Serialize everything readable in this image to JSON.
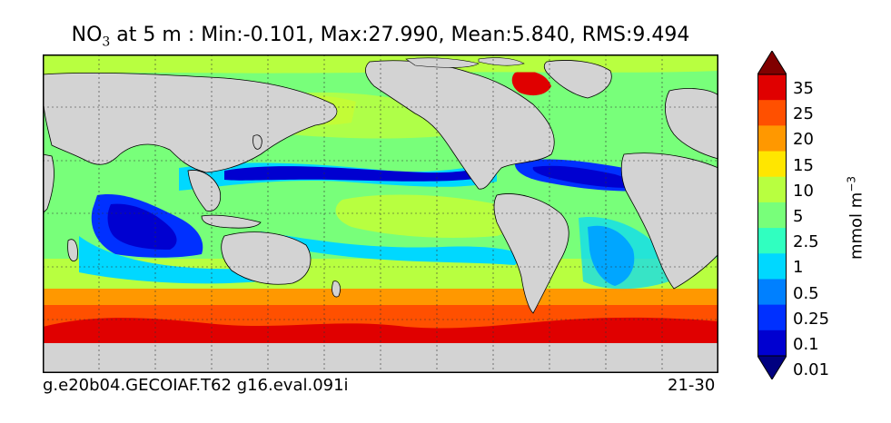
{
  "title": {
    "prefix": "NO",
    "subscript": "3",
    "rest": " at 5 m : Min:-0.101, Max:27.990, Mean:5.840, RMS:9.494"
  },
  "footer": {
    "left": "g.e20b04.GECOIAF.T62 g16.eval.091i",
    "right": "21-30"
  },
  "colorbar": {
    "labels": [
      "35",
      "25",
      "20",
      "15",
      "10",
      "5",
      "2.5",
      "1",
      "0.5",
      "0.25",
      "0.1",
      "0.01"
    ],
    "colors": [
      "#800000",
      "#e00000",
      "#ff5000",
      "#ff9800",
      "#ffe600",
      "#b8ff40",
      "#78ff7a",
      "#30ffc0",
      "#00d8ff",
      "#0080ff",
      "#0030ff",
      "#0000d0",
      "#000080"
    ],
    "units_base": "mmol m",
    "units_exp": "−3"
  },
  "map": {
    "land_color": "#d3d3d3",
    "ocean_colors": {
      "polar_south": "#e00000",
      "southern": "#ff5000",
      "sub_southern": "#ff9800",
      "mid_south": "#b8ff40",
      "temperate": "#78ff7a",
      "north": "#78ff7a",
      "subtropic": "#30ffc0",
      "oligotrophic": "#0000d0",
      "gyre_blue": "#0030ff",
      "cyan": "#00d8ff"
    }
  }
}
